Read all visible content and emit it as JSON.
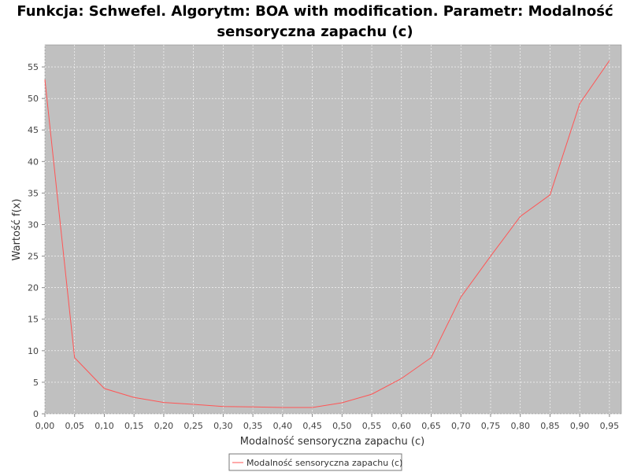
{
  "chart_data": {
    "type": "line",
    "title_line1": "Funkcja: Schwefel. Algorytm: BOA with modification. Parametr: Modalność",
    "title_line2": "sensoryczna zapachu (c)",
    "xlabel": "Modalność sensoryczna zapachu (c)",
    "ylabel": "Wartość f(x)",
    "xlim": [
      0,
      0.97
    ],
    "ylim": [
      0,
      58.5
    ],
    "x_ticks": [
      0,
      0.05,
      0.1,
      0.15,
      0.2,
      0.25,
      0.3,
      0.35,
      0.4,
      0.45,
      0.5,
      0.55,
      0.6,
      0.65,
      0.7,
      0.75,
      0.8,
      0.85,
      0.9,
      0.95
    ],
    "x_tick_labels": [
      "0,00",
      "0,05",
      "0,10",
      "0,15",
      "0,20",
      "0,25",
      "0,30",
      "0,35",
      "0,40",
      "0,45",
      "0,50",
      "0,55",
      "0,60",
      "0,65",
      "0,70",
      "0,75",
      "0,80",
      "0,85",
      "0,90",
      "0,95"
    ],
    "y_ticks": [
      0,
      5,
      10,
      15,
      20,
      25,
      30,
      35,
      40,
      45,
      50,
      55
    ],
    "y_tick_labels": [
      "0",
      "5",
      "10",
      "15",
      "20",
      "25",
      "30",
      "35",
      "40",
      "45",
      "50",
      "55"
    ],
    "grid": true,
    "legend_position": "bottom-center",
    "background_color": "#c0c0c0",
    "series": [
      {
        "name": "Modalność sensoryczna zapachu (c)",
        "color": "#ff5555",
        "x": [
          0,
          0.05,
          0.1,
          0.15,
          0.2,
          0.25,
          0.3,
          0.35,
          0.4,
          0.45,
          0.5,
          0.55,
          0.6,
          0.65,
          0.7,
          0.75,
          0.8,
          0.85,
          0.9,
          0.95
        ],
        "y": [
          53.0,
          8.9,
          4.0,
          2.6,
          1.8,
          1.5,
          1.15,
          1.1,
          1.0,
          1.0,
          1.75,
          3.1,
          5.6,
          8.9,
          18.5,
          25.0,
          31.3,
          34.7,
          49.2,
          56.0
        ]
      }
    ]
  }
}
